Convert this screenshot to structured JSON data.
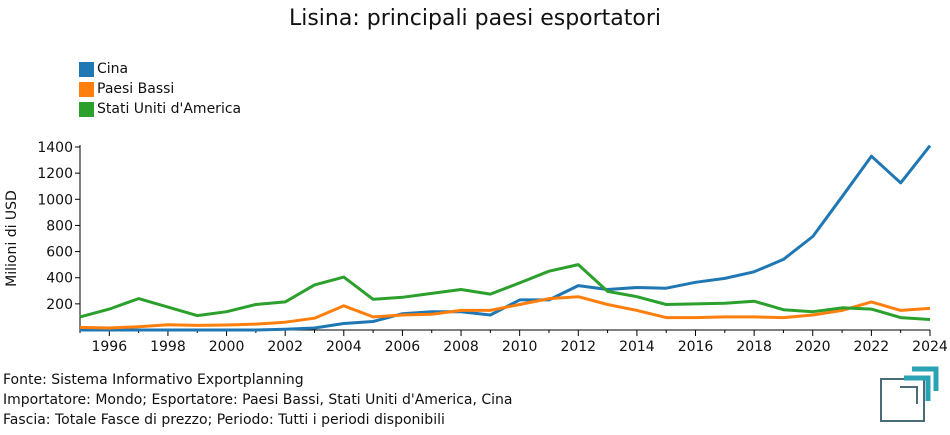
{
  "page": {
    "title": "Lisina: principali paesi esportatori",
    "footer": {
      "source": "Fonte: Sistema Informativo Exportplanning",
      "importer": "Importatore: Mondo; Esportatore: Paesi Bassi, Stati Uniti d'America, Cina",
      "band": "Fascia: Totale Fasce di prezzo; Periodo: Tutti i periodi disponibili"
    }
  },
  "chart_data": {
    "type": "line",
    "title": "Lisina: principali paesi esportatori",
    "xlabel": "",
    "ylabel": "Milioni di USD",
    "xlim": [
      1995,
      2024
    ],
    "ylim": [
      0,
      1400
    ],
    "x_ticks": [
      1996,
      1998,
      2000,
      2002,
      2004,
      2006,
      2008,
      2010,
      2012,
      2014,
      2016,
      2018,
      2020,
      2022,
      2024
    ],
    "y_ticks": [
      200,
      400,
      600,
      800,
      1000,
      1200,
      1400
    ],
    "grid": false,
    "legend_position": "top-left",
    "x": [
      1995,
      1996,
      1997,
      1998,
      1999,
      2000,
      2001,
      2002,
      2003,
      2004,
      2005,
      2006,
      2007,
      2008,
      2009,
      2010,
      2011,
      2012,
      2013,
      2014,
      2015,
      2016,
      2017,
      2018,
      2019,
      2020,
      2021,
      2022,
      2023,
      2024
    ],
    "series": [
      {
        "name": "Cina",
        "color": "#1f77b4",
        "values": [
          0,
          0,
          0,
          0,
          0,
          0,
          0,
          5,
          15,
          50,
          65,
          125,
          140,
          140,
          115,
          230,
          230,
          340,
          310,
          325,
          320,
          365,
          395,
          445,
          540,
          715,
          1020,
          1330,
          1125,
          1410
        ]
      },
      {
        "name": "Paesi Bassi",
        "color": "#ff7f0e",
        "values": [
          20,
          15,
          25,
          40,
          35,
          38,
          45,
          60,
          90,
          185,
          100,
          115,
          120,
          150,
          150,
          195,
          240,
          255,
          195,
          150,
          95,
          95,
          100,
          100,
          95,
          115,
          150,
          215,
          150,
          165
        ]
      },
      {
        "name": "Stati Uniti d'America",
        "color": "#2ca02c",
        "values": [
          100,
          160,
          240,
          175,
          110,
          140,
          195,
          215,
          345,
          405,
          235,
          250,
          280,
          310,
          275,
          360,
          450,
          500,
          295,
          255,
          195,
          200,
          205,
          220,
          155,
          140,
          170,
          160,
          95,
          80
        ]
      }
    ]
  }
}
